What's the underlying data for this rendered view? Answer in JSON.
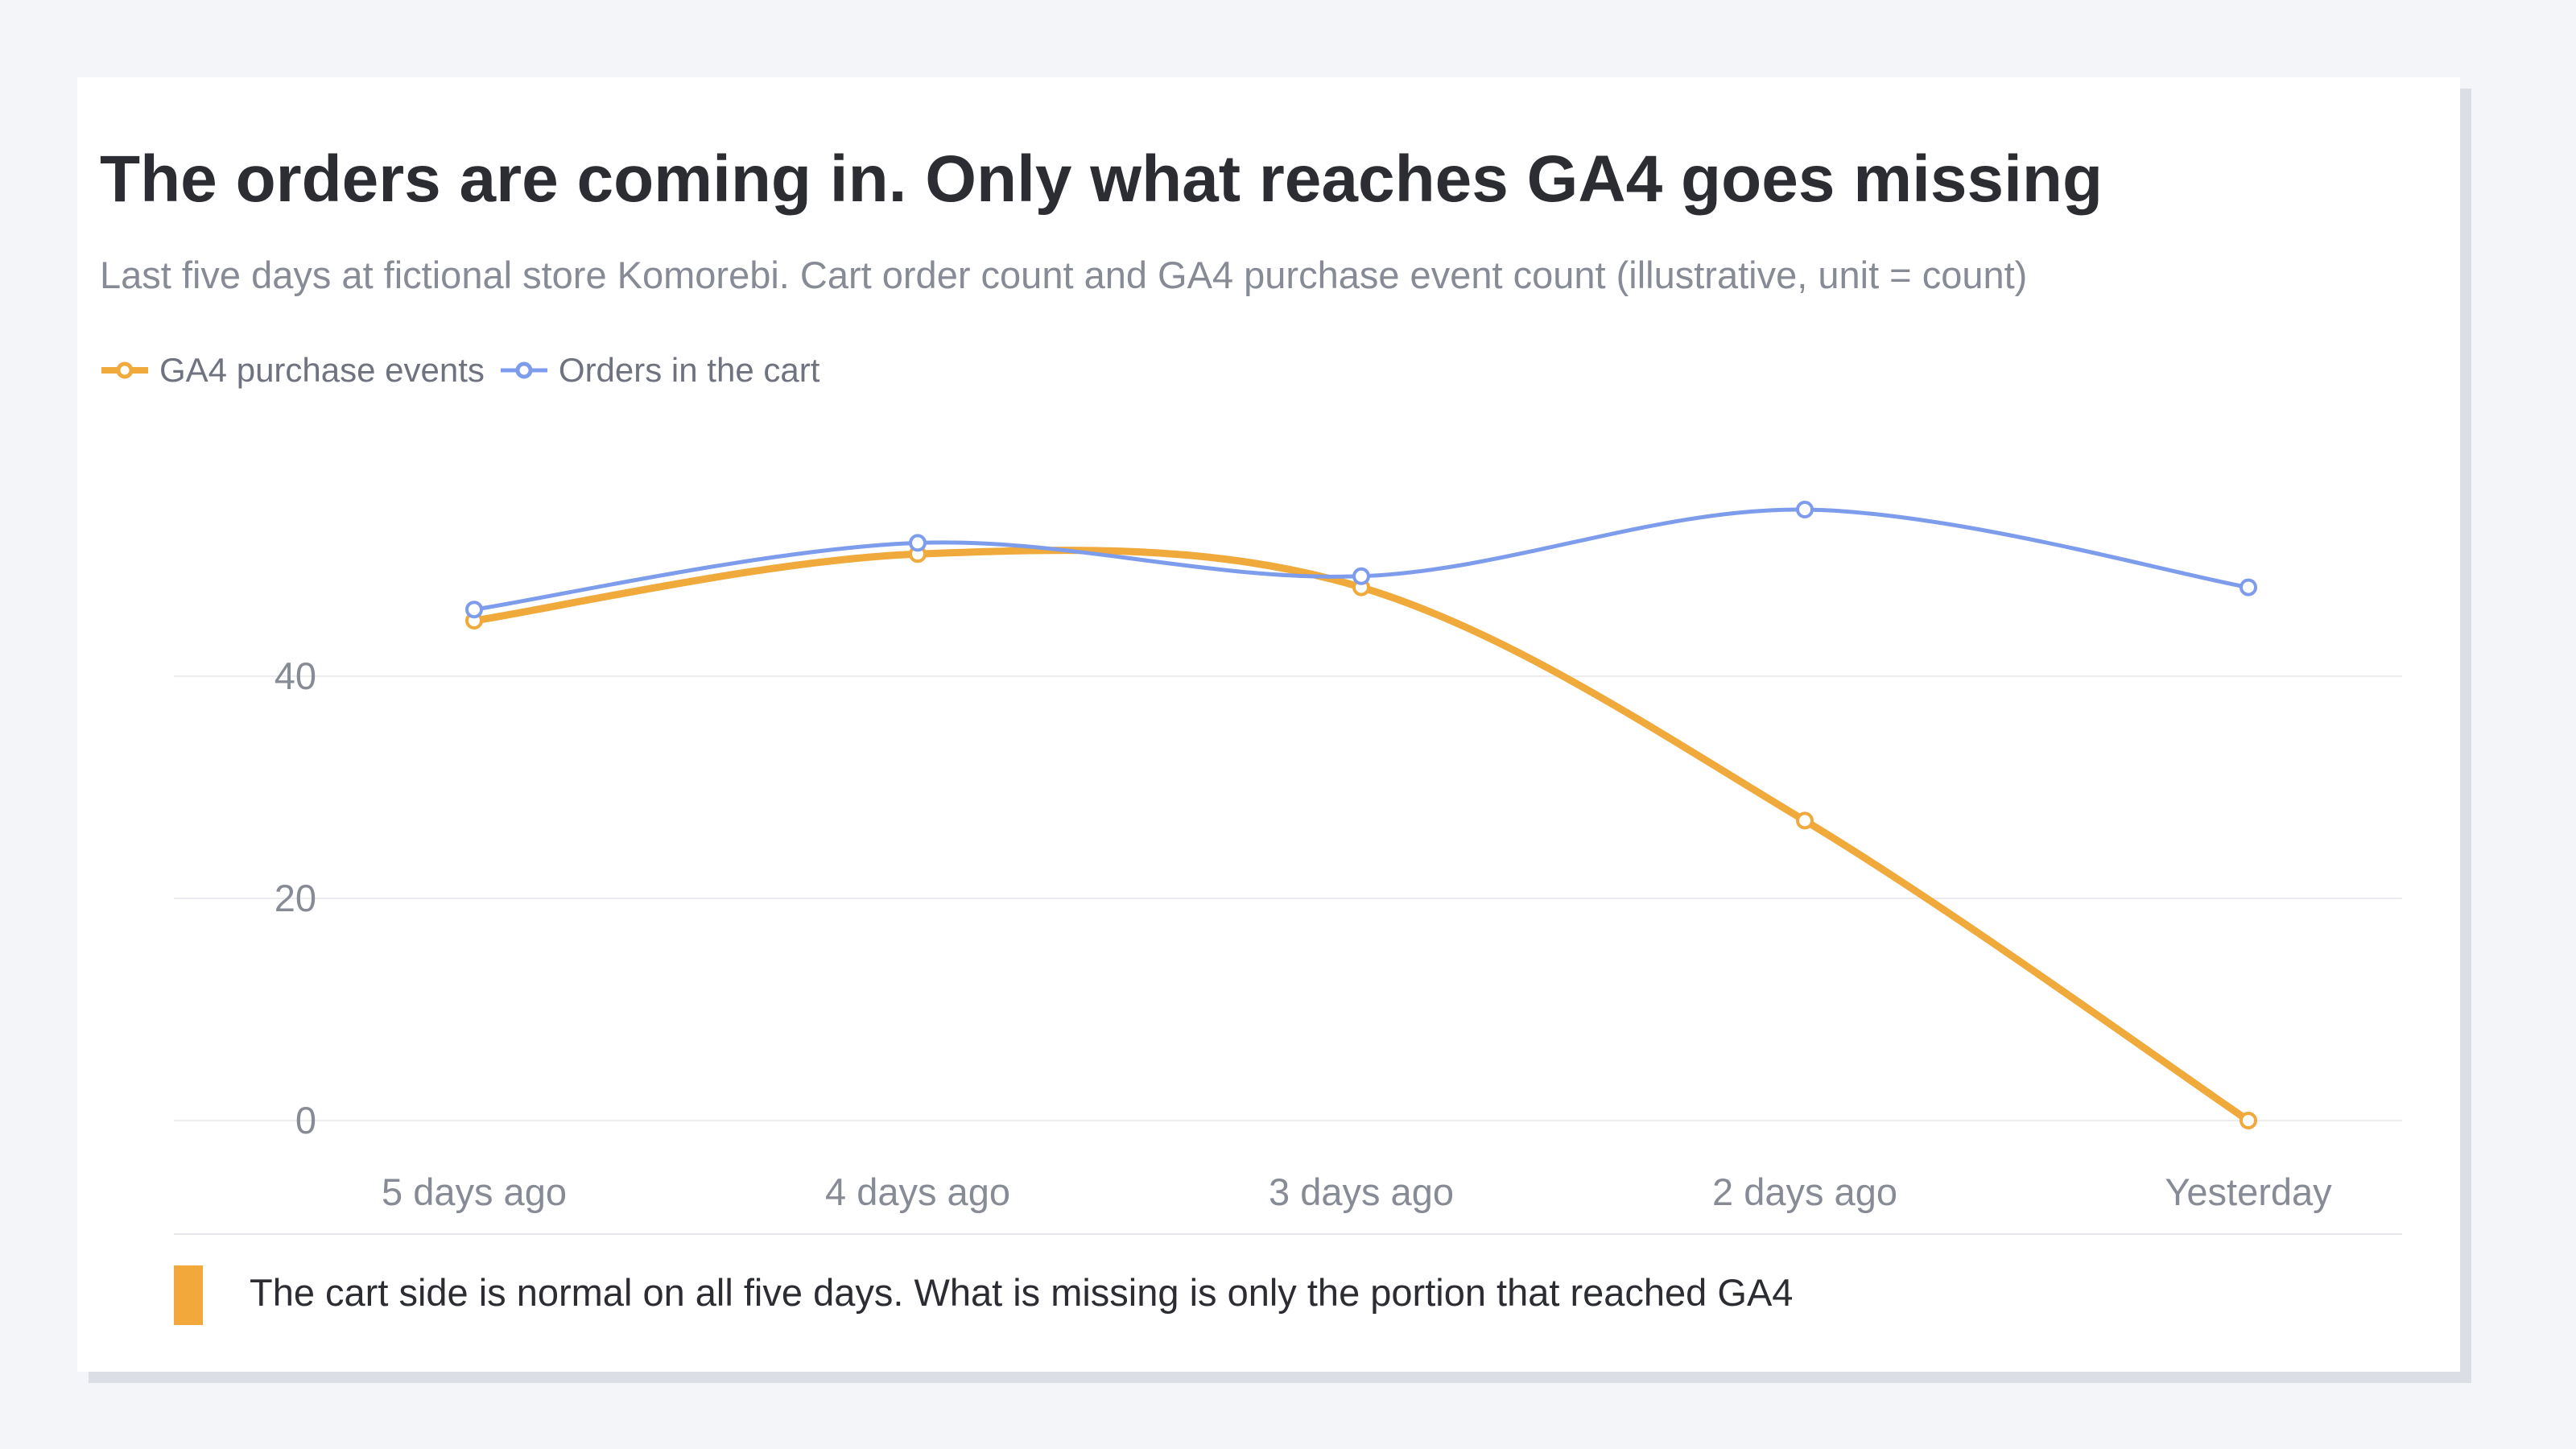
{
  "chart_data": {
    "type": "line",
    "title": "The orders are coming in. Only what reaches GA4 goes missing",
    "subtitle": "Last five days at fictional store Komorebi. Cart order count and GA4 purchase event count (illustrative, unit = count)",
    "categories": [
      "5 days ago",
      "4 days ago",
      "3 days ago",
      "2 days ago",
      "Yesterday"
    ],
    "series": [
      {
        "name": "GA4 purchase events",
        "values": [
          45,
          51,
          48,
          27,
          0
        ],
        "color": "#f0a93b"
      },
      {
        "name": "Orders in the cart",
        "values": [
          46,
          52,
          49,
          55,
          48
        ],
        "color": "#7e9cec"
      }
    ],
    "ylim": [
      0,
      60
    ],
    "yticks": [
      0,
      20,
      40
    ],
    "grid": true,
    "legend": "top-left",
    "note": "The cart side is normal on all five days. What is missing is only the portion that reached GA4",
    "note_color": "#f3a83b"
  }
}
